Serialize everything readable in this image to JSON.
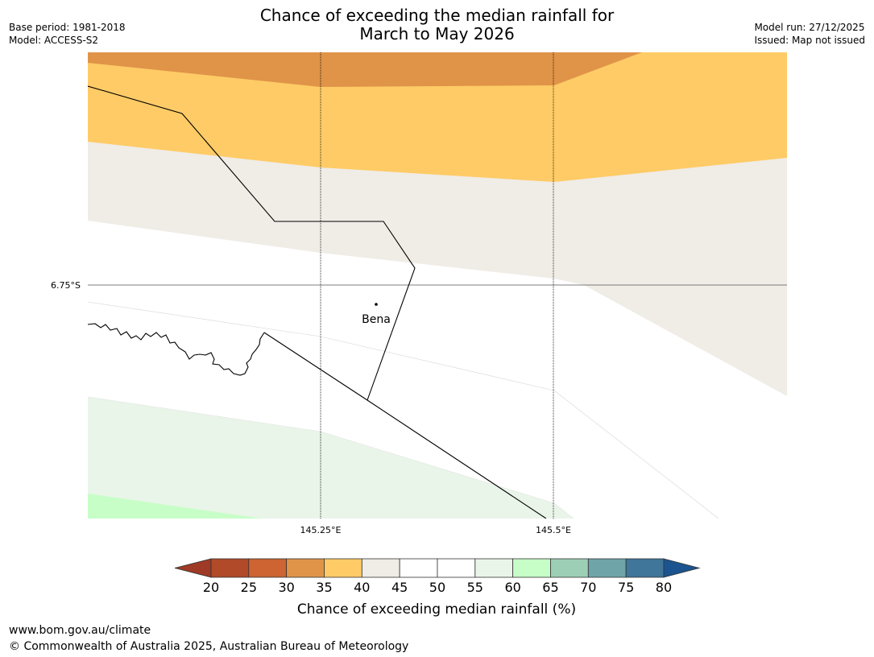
{
  "title_line1": "Chance of exceeding the median rainfall for",
  "title_line2": "March to May 2026",
  "meta_left": {
    "base_period": "Base period: 1981-2018",
    "model": "Model: ACCESS-S2"
  },
  "meta_right": {
    "model_run": "Model run: 27/12/2025",
    "issued": "Issued: Map not issued"
  },
  "map": {
    "lat_label": "6.75°S",
    "lon_labels": [
      "145.25°E",
      "145.5°E"
    ],
    "place": "Bena"
  },
  "legend": {
    "title": "Chance of exceeding median rainfall (%)",
    "ticks": [
      "20",
      "25",
      "30",
      "35",
      "40",
      "45",
      "50",
      "55",
      "60",
      "65",
      "70",
      "75",
      "80"
    ],
    "colors": {
      "lt20": "#9e3a26",
      "20-25": "#b14a28",
      "25-30": "#cd6432",
      "30-35": "#e09448",
      "35-40": "#fecb66",
      "40-45": "#f0ece6",
      "45-50": "#ffffff",
      "50-55": "#ffffff",
      "55-60": "#e9f5e8",
      "60-65": "#c7fec7",
      "65-70": "#9dcfb7",
      "70-75": "#6fa4a8",
      "75-80": "#3f7699",
      "gt80": "#1b548e"
    }
  },
  "footer": {
    "url": "www.bom.gov.au/climate",
    "copyright": "© Commonwealth of Australia 2025, Australian Bureau of Meteorology"
  }
}
